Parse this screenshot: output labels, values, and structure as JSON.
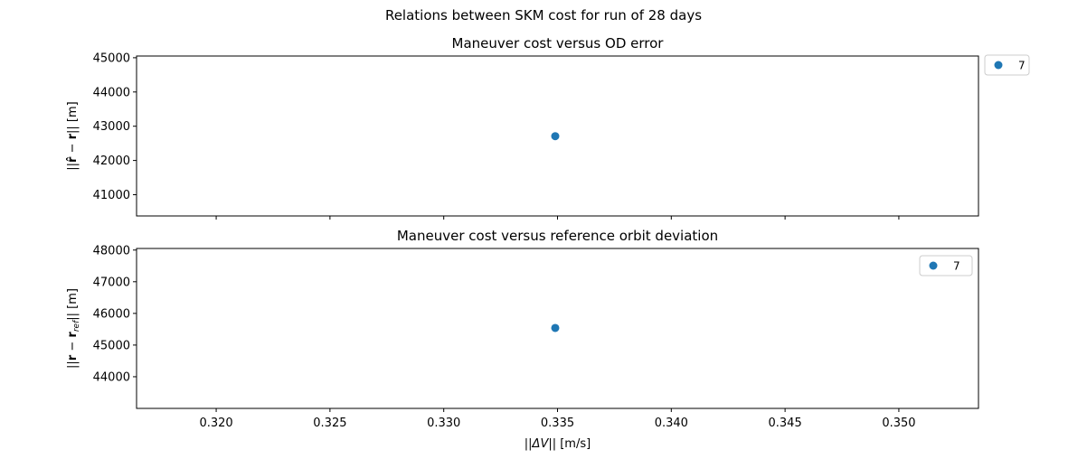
{
  "figure": {
    "suptitle": "Relations between SKM cost for run of 28 days"
  },
  "chart_data": [
    {
      "type": "scatter",
      "title": "Maneuver cost versus OD error",
      "xlabel": "",
      "ylabel_parts": [
        "||",
        "r̂",
        " − ",
        "r",
        "|| [m]"
      ],
      "xlim": [
        0.3165,
        0.3535
      ],
      "ylim": [
        40380,
        45050
      ],
      "xticks_shared": true,
      "yticks": [
        41000,
        42000,
        43000,
        44000,
        45000
      ],
      "ytick_labels": [
        "41000",
        "42000",
        "43000",
        "44000",
        "45000"
      ],
      "series": [
        {
          "name": "7",
          "color": "#1f77b4",
          "points": [
            {
              "x": 0.3349,
              "y": 42710
            }
          ]
        }
      ],
      "legend": {
        "placement": "outside-top-right",
        "entries": [
          "7"
        ]
      }
    },
    {
      "type": "scatter",
      "title": "Maneuver cost versus reference orbit deviation",
      "xlabel": "||ΔV|| [m/s]",
      "xlabel_parts": [
        "||",
        "ΔV",
        "|| [m/s]"
      ],
      "ylabel_parts": [
        "||",
        "r",
        " − ",
        "r",
        "ref",
        "|| [m]"
      ],
      "xlim": [
        0.3165,
        0.3535
      ],
      "ylim": [
        43000,
        48050
      ],
      "xticks": [
        0.32,
        0.325,
        0.33,
        0.335,
        0.34,
        0.345,
        0.35
      ],
      "xtick_labels": [
        "0.320",
        "0.325",
        "0.330",
        "0.335",
        "0.340",
        "0.345",
        "0.350"
      ],
      "yticks": [
        44000,
        45000,
        46000,
        47000,
        48000
      ],
      "ytick_labels": [
        "44000",
        "45000",
        "46000",
        "47000",
        "48000"
      ],
      "series": [
        {
          "name": "7",
          "color": "#1f77b4",
          "points": [
            {
              "x": 0.3349,
              "y": 45540
            }
          ]
        }
      ],
      "legend": {
        "placement": "upper-right",
        "entries": [
          "7"
        ]
      }
    }
  ]
}
